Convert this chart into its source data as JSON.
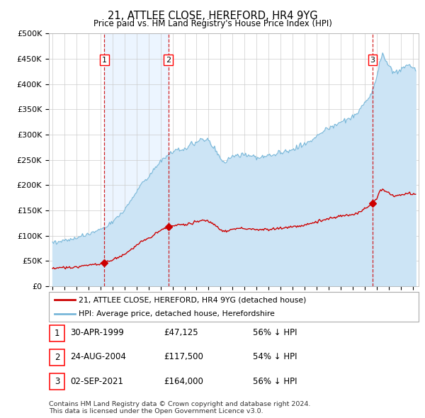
{
  "title": "21, ATTLEE CLOSE, HEREFORD, HR4 9YG",
  "subtitle": "Price paid vs. HM Land Registry's House Price Index (HPI)",
  "ylim": [
    0,
    500000
  ],
  "yticks": [
    0,
    50000,
    100000,
    150000,
    200000,
    250000,
    300000,
    350000,
    400000,
    450000,
    500000
  ],
  "ytick_labels": [
    "£0",
    "£50K",
    "£100K",
    "£150K",
    "£200K",
    "£250K",
    "£300K",
    "£350K",
    "£400K",
    "£450K",
    "£500K"
  ],
  "sale_prices": [
    47125,
    117500,
    164000
  ],
  "sale_labels": [
    "1",
    "2",
    "3"
  ],
  "sale_year_floats": [
    1999.327,
    2004.644,
    2021.671
  ],
  "hpi_color": "#7ab8d9",
  "hpi_fill_color": "#cce4f5",
  "price_color": "#cc0000",
  "shade_color": "#ddeeff",
  "legend_label_price": "21, ATTLEE CLOSE, HEREFORD, HR4 9YG (detached house)",
  "legend_label_hpi": "HPI: Average price, detached house, Herefordshire",
  "table_rows": [
    [
      "1",
      "30-APR-1999",
      "£47,125",
      "56% ↓ HPI"
    ],
    [
      "2",
      "24-AUG-2004",
      "£117,500",
      "54% ↓ HPI"
    ],
    [
      "3",
      "02-SEP-2021",
      "£164,000",
      "56% ↓ HPI"
    ]
  ],
  "footnote": "Contains HM Land Registry data © Crown copyright and database right 2024.\nThis data is licensed under the Open Government Licence v3.0.",
  "background_color": "#ffffff",
  "grid_color": "#cccccc",
  "xlim_start": 1994.7,
  "xlim_end": 2025.5
}
